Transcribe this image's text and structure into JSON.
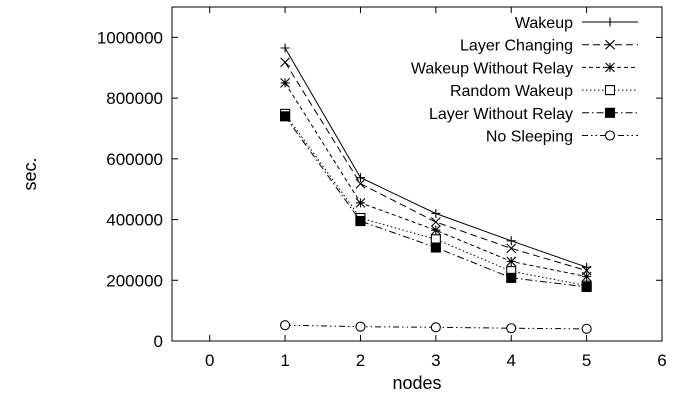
{
  "chart_data": {
    "type": "line",
    "xlabel": "nodes",
    "ylabel": "sec.",
    "xlim": [
      -0.5,
      6
    ],
    "ylim": [
      0,
      1100000
    ],
    "xticks": [
      "0",
      "1",
      "2",
      "3",
      "4",
      "5",
      "6"
    ],
    "yticks": [
      "0",
      "200000",
      "400000",
      "600000",
      "800000",
      "1000000"
    ],
    "x": [
      1,
      2,
      3,
      4,
      5
    ],
    "legend_position": "top-right",
    "grid": false,
    "series": [
      {
        "name": "Wakeup",
        "marker": "plus",
        "dash": "solid",
        "values": [
          965000,
          538000,
          420000,
          330000,
          243000
        ]
      },
      {
        "name": "Layer Changing",
        "marker": "cross",
        "dash": "dashed",
        "values": [
          918000,
          518000,
          392000,
          305000,
          232000
        ]
      },
      {
        "name": "Wakeup Without Relay",
        "marker": "star",
        "dash": "short-dash",
        "values": [
          850000,
          455000,
          365000,
          262000,
          212000
        ]
      },
      {
        "name": "Random Wakeup",
        "marker": "open-square",
        "dash": "dotted",
        "values": [
          748000,
          405000,
          335000,
          230000,
          182000
        ]
      },
      {
        "name": "Layer Without Relay",
        "marker": "filled-square",
        "dash": "dash-dot",
        "values": [
          740000,
          395000,
          308000,
          208000,
          178000
        ]
      },
      {
        "name": "No Sleeping",
        "marker": "open-circle",
        "dash": "dash-dot-dot",
        "values": [
          52000,
          47000,
          45000,
          42000,
          40000
        ]
      }
    ]
  }
}
